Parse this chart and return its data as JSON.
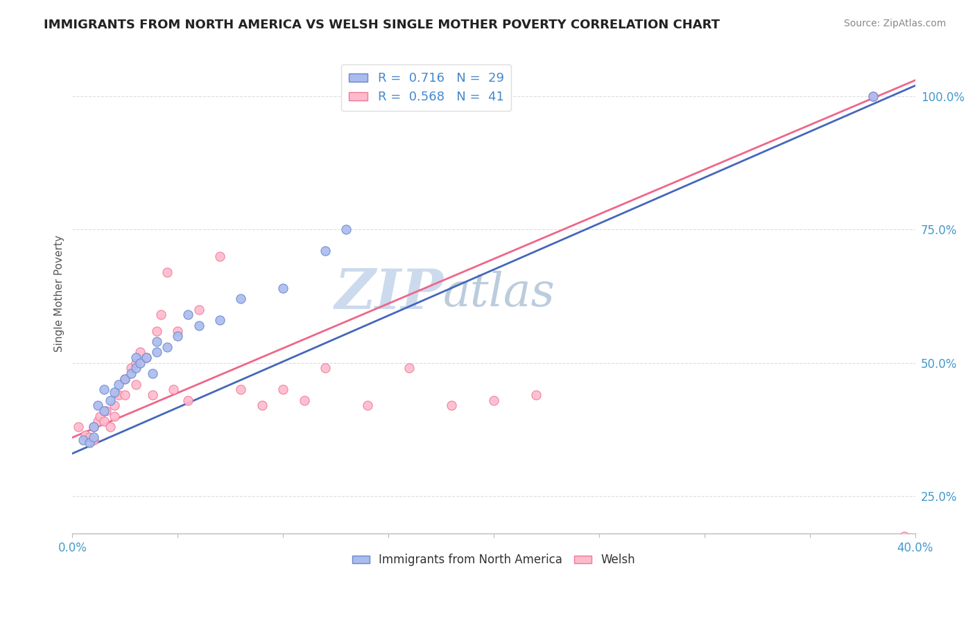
{
  "title": "IMMIGRANTS FROM NORTH AMERICA VS WELSH SINGLE MOTHER POVERTY CORRELATION CHART",
  "source": "Source: ZipAtlas.com",
  "ylabel": "Single Mother Poverty",
  "xlim": [
    0.0,
    0.4
  ],
  "ylim": [
    0.18,
    1.08
  ],
  "xticks": [
    0.0,
    0.05,
    0.1,
    0.15,
    0.2,
    0.25,
    0.3,
    0.35,
    0.4
  ],
  "yticks_right": [
    0.25,
    0.5,
    0.75,
    1.0
  ],
  "ytick_right_labels": [
    "25.0%",
    "50.0%",
    "75.0%",
    "100.0%"
  ],
  "blue_R": 0.716,
  "blue_N": 29,
  "pink_R": 0.568,
  "pink_N": 41,
  "blue_color": "#AABBEE",
  "pink_color": "#FFBBCC",
  "blue_edge_color": "#6688CC",
  "pink_edge_color": "#EE7799",
  "blue_line_color": "#4466BB",
  "pink_line_color": "#EE6688",
  "watermark_zip": "ZIP",
  "watermark_atlas": "atlas",
  "watermark_color_zip": "#CCDAEE",
  "watermark_color_atlas": "#BBCCDD",
  "background_color": "#FFFFFF",
  "grid_color": "#DDDDDD",
  "blue_scatter_x": [
    0.005,
    0.008,
    0.01,
    0.01,
    0.012,
    0.015,
    0.015,
    0.018,
    0.02,
    0.022,
    0.025,
    0.028,
    0.03,
    0.03,
    0.032,
    0.035,
    0.038,
    0.04,
    0.04,
    0.045,
    0.05,
    0.055,
    0.06,
    0.07,
    0.08,
    0.1,
    0.12,
    0.13,
    0.38
  ],
  "blue_scatter_y": [
    0.355,
    0.35,
    0.36,
    0.38,
    0.42,
    0.41,
    0.45,
    0.43,
    0.445,
    0.46,
    0.47,
    0.48,
    0.49,
    0.51,
    0.5,
    0.51,
    0.48,
    0.52,
    0.54,
    0.53,
    0.55,
    0.59,
    0.57,
    0.58,
    0.62,
    0.64,
    0.71,
    0.75,
    1.0
  ],
  "pink_scatter_x": [
    0.003,
    0.006,
    0.008,
    0.01,
    0.01,
    0.012,
    0.013,
    0.015,
    0.016,
    0.018,
    0.02,
    0.02,
    0.022,
    0.025,
    0.025,
    0.028,
    0.03,
    0.03,
    0.032,
    0.035,
    0.038,
    0.04,
    0.042,
    0.045,
    0.048,
    0.05,
    0.055,
    0.06,
    0.07,
    0.08,
    0.09,
    0.1,
    0.11,
    0.12,
    0.14,
    0.16,
    0.18,
    0.2,
    0.22,
    0.38,
    0.395
  ],
  "pink_scatter_y": [
    0.38,
    0.365,
    0.36,
    0.355,
    0.38,
    0.39,
    0.4,
    0.39,
    0.41,
    0.38,
    0.4,
    0.42,
    0.44,
    0.44,
    0.47,
    0.49,
    0.46,
    0.5,
    0.52,
    0.51,
    0.44,
    0.56,
    0.59,
    0.67,
    0.45,
    0.56,
    0.43,
    0.6,
    0.7,
    0.45,
    0.42,
    0.45,
    0.43,
    0.49,
    0.42,
    0.49,
    0.42,
    0.43,
    0.44,
    1.0,
    0.175
  ],
  "blue_line_x0": 0.0,
  "blue_line_y0": 0.33,
  "blue_line_x1": 0.4,
  "blue_line_y1": 1.02,
  "pink_line_x0": 0.0,
  "pink_line_y0": 0.36,
  "pink_line_x1": 0.4,
  "pink_line_y1": 1.03
}
